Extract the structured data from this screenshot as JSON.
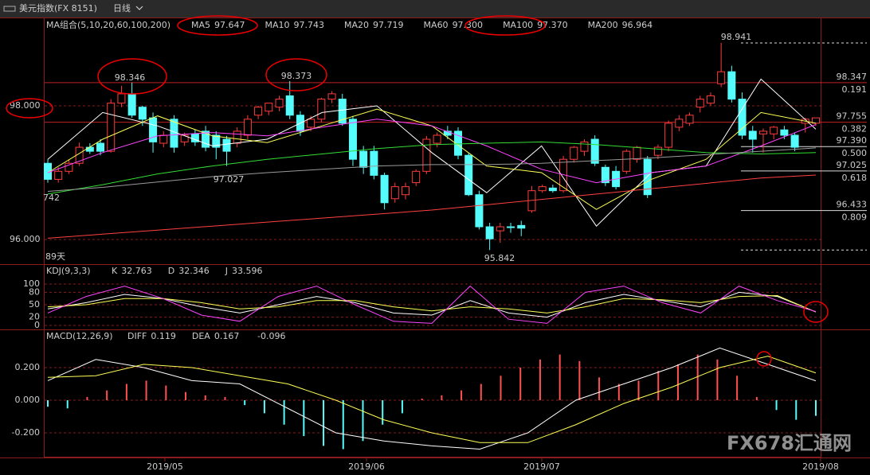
{
  "window": {
    "title": "美元指数(FX 8151)",
    "period": "日线"
  },
  "price_panel": {
    "group_label": "MA组合(5,10,20,60,100,200)",
    "yticks": [
      {
        "value": 98,
        "label": "98.000"
      },
      {
        "value": 96,
        "label": "96.000"
      }
    ],
    "candles": [
      [
        97.14,
        97.2,
        96.85,
        96.9
      ],
      [
        96.9,
        97.08,
        96.85,
        97.02
      ],
      [
        97.02,
        97.2,
        96.98,
        97.14
      ],
      [
        97.14,
        97.45,
        97.1,
        97.38
      ],
      [
        97.38,
        97.44,
        97.28,
        97.32
      ],
      [
        97.44,
        97.5,
        97.26,
        97.32
      ],
      [
        97.32,
        98.1,
        97.3,
        98.04
      ],
      [
        98.04,
        98.3,
        97.98,
        98.18
      ],
      [
        98.18,
        98.35,
        97.82,
        97.86
      ],
      [
        97.98,
        98,
        97.7,
        97.8
      ],
      [
        97.82,
        97.9,
        97.3,
        97.46
      ],
      [
        97.44,
        97.62,
        97.38,
        97.56
      ],
      [
        97.8,
        97.86,
        97.3,
        97.38
      ],
      [
        97.46,
        97.6,
        97.4,
        97.56
      ],
      [
        97.58,
        97.65,
        97.4,
        97.46
      ],
      [
        97.62,
        97.7,
        97.32,
        97.38
      ],
      [
        97.56,
        97.62,
        97.2,
        97.38
      ],
      [
        97.5,
        97.55,
        97.1,
        97.32
      ],
      [
        97.44,
        97.68,
        97.38,
        97.62
      ],
      [
        97.56,
        97.86,
        97.5,
        97.8
      ],
      [
        97.86,
        98,
        97.8,
        97.98
      ],
      [
        97.92,
        98.04,
        97.86,
        98.04
      ],
      [
        97.98,
        98.15,
        97.92,
        98.1
      ],
      [
        98.15,
        98.37,
        97.8,
        97.86
      ],
      [
        97.86,
        97.92,
        97.55,
        97.62
      ],
      [
        97.68,
        97.85,
        97.62,
        97.8
      ],
      [
        97.8,
        98.12,
        97.75,
        98.1
      ],
      [
        98.1,
        98.22,
        98.04,
        98.18
      ],
      [
        98.1,
        98.18,
        97.7,
        97.74
      ],
      [
        97.8,
        97.85,
        97.1,
        97.2
      ],
      [
        97.32,
        97.4,
        96.98,
        97.08
      ],
      [
        97.32,
        97.4,
        96.9,
        96.96
      ],
      [
        96.96,
        97,
        96.45,
        96.55
      ],
      [
        96.61,
        96.85,
        96.55,
        96.79
      ],
      [
        96.67,
        96.85,
        96.6,
        96.79
      ],
      [
        96.85,
        97.05,
        96.8,
        97.02
      ],
      [
        97.02,
        97.55,
        96.98,
        97.5
      ],
      [
        97.44,
        97.6,
        97.38,
        97.56
      ],
      [
        97.62,
        97.7,
        97.5,
        97.56
      ],
      [
        97.62,
        97.68,
        97.2,
        97.26
      ],
      [
        97.26,
        97.3,
        96.65,
        96.67
      ],
      [
        96.67,
        96.73,
        96.15,
        96.19
      ],
      [
        96.19,
        96.25,
        95.842,
        96.01
      ],
      [
        96.13,
        96.25,
        95.95,
        96.19
      ],
      [
        96.19,
        96.25,
        96.1,
        96.18
      ],
      [
        96.21,
        96.28,
        96.05,
        96.17
      ],
      [
        96.43,
        96.8,
        96.4,
        96.73
      ],
      [
        96.73,
        96.82,
        96.7,
        96.79
      ],
      [
        96.77,
        96.82,
        96.7,
        96.73
      ],
      [
        96.73,
        97.25,
        96.7,
        97.2
      ],
      [
        97.2,
        97.4,
        97.15,
        97.38
      ],
      [
        97.32,
        97.5,
        97.25,
        97.46
      ],
      [
        97.5,
        97.56,
        97.1,
        97.14
      ],
      [
        97.08,
        97.12,
        96.8,
        96.85
      ],
      [
        97.02,
        97.1,
        96.75,
        96.79
      ],
      [
        97.02,
        97.35,
        96.98,
        97.32
      ],
      [
        97.2,
        97.4,
        97.15,
        97.38
      ],
      [
        97.2,
        97.25,
        96.62,
        96.67
      ],
      [
        97.26,
        97.42,
        97.2,
        97.38
      ],
      [
        97.38,
        97.78,
        97.32,
        97.74
      ],
      [
        97.68,
        97.86,
        97.62,
        97.8
      ],
      [
        97.74,
        97.9,
        97.7,
        97.86
      ],
      [
        97.98,
        98.15,
        97.9,
        98.1
      ],
      [
        98.04,
        98.2,
        98,
        98.15
      ],
      [
        98.33,
        98.941,
        98.28,
        98.51
      ],
      [
        98.51,
        98.6,
        98.05,
        98.1
      ],
      [
        98.1,
        98.2,
        97.5,
        97.56
      ],
      [
        97.62,
        97.7,
        97.3,
        97.5
      ],
      [
        97.58,
        97.66,
        97.3,
        97.62
      ],
      [
        97.58,
        97.7,
        97.5,
        97.68
      ],
      [
        97.64,
        97.7,
        97.5,
        97.56
      ],
      [
        97.56,
        97.6,
        97.32,
        97.38
      ],
      [
        97.74,
        97.82,
        97.6,
        97.8
      ],
      [
        97.74,
        97.82,
        97.7,
        97.82
      ]
    ],
    "up_color": "#ff3c3c",
    "down_color": "#54fcfc",
    "ma": [
      {
        "name": "MA5",
        "last": "97.647",
        "color": "#ffffff",
        "values": [
          97.2,
          97.9,
          97.7,
          97.4,
          97.5,
          97.9,
          98.0,
          97.3,
          96.7,
          97.4,
          96.2,
          97.0,
          97.1,
          98.4,
          97.65
        ]
      },
      {
        "name": "MA10",
        "last": "97.743",
        "color": "#ffff55",
        "values": [
          97.0,
          97.5,
          97.85,
          97.55,
          97.45,
          97.7,
          97.95,
          97.7,
          97.1,
          97.0,
          96.45,
          96.9,
          97.2,
          97.9,
          97.74
        ]
      },
      {
        "name": "MA20",
        "last": "97.719",
        "color": "#ff44ff",
        "values": [
          97.0,
          97.3,
          97.55,
          97.6,
          97.55,
          97.68,
          97.8,
          97.7,
          97.4,
          97.05,
          96.85,
          97.0,
          97.1,
          97.4,
          97.72
        ]
      },
      {
        "name": "MA60",
        "last": "97.300",
        "color": "#33dd33",
        "values": [
          96.68,
          96.82,
          96.98,
          97.1,
          97.2,
          97.28,
          97.36,
          97.42,
          97.44,
          97.46,
          97.42,
          97.36,
          97.3,
          97.28,
          97.3
        ]
      },
      {
        "name": "MA100",
        "last": "97.370",
        "color": "#9a9a9a",
        "values": [
          96.72,
          96.78,
          96.86,
          96.94,
          97.0,
          97.05,
          97.1,
          97.12,
          97.12,
          97.14,
          97.18,
          97.22,
          97.27,
          97.32,
          97.37
        ]
      },
      {
        "name": "MA200",
        "last": "96.964",
        "color": "#ff4040",
        "values": [
          96.02,
          96.08,
          96.14,
          96.2,
          96.26,
          96.32,
          96.38,
          96.44,
          96.52,
          96.6,
          96.68,
          96.76,
          96.84,
          96.92,
          96.964
        ]
      }
    ],
    "levels": [
      {
        "value": 98.347,
        "label": "98.347",
        "ratio": "0.191"
      },
      {
        "value": 97.755,
        "label": "97.755",
        "ratio": "0.382"
      },
      {
        "value": 97.39,
        "label": "97.390",
        "ratio": "0.500"
      },
      {
        "value": 97.025,
        "label": "97.025",
        "ratio": "0.618"
      },
      {
        "value": 96.433,
        "label": "96.433",
        "ratio": "0.809"
      }
    ],
    "range_lines": [
      98.941,
      95.842
    ],
    "annotations": [
      98.346,
      98.373,
      97.027,
      95.842,
      98.941
    ],
    "left_notes": [
      "742",
      "89天"
    ]
  },
  "kdj_panel": {
    "label": "KDJ(9,3,3)",
    "yticks": [
      100,
      80,
      50,
      20,
      0
    ],
    "series": [
      {
        "name": "K",
        "last": "32.763",
        "color": "#ffffff",
        "values": [
          40,
          55,
          75,
          65,
          45,
          30,
          50,
          70,
          55,
          30,
          25,
          60,
          30,
          20,
          55,
          75,
          60,
          45,
          80,
          70,
          32.763
        ]
      },
      {
        "name": "D",
        "last": "32.346",
        "color": "#ffff55",
        "values": [
          45,
          50,
          65,
          65,
          55,
          40,
          45,
          60,
          60,
          45,
          35,
          45,
          40,
          30,
          45,
          65,
          62,
          55,
          70,
          72,
          32.346
        ]
      },
      {
        "name": "J",
        "last": "33.596",
        "color": "#ff44ff",
        "values": [
          30,
          70,
          95,
          65,
          25,
          10,
          70,
          95,
          50,
          10,
          5,
          95,
          15,
          5,
          80,
          95,
          55,
          30,
          95,
          60,
          33.596
        ]
      }
    ]
  },
  "macd_panel": {
    "label": "MACD(12,26,9)",
    "macd_last": "-0.096",
    "yticks": [
      {
        "value": 0.2,
        "label": "0.200"
      },
      {
        "value": 0,
        "label": "0.000"
      },
      {
        "value": -0.2,
        "label": "-0.200"
      }
    ],
    "series": [
      {
        "name": "DIFF",
        "last": "0.119",
        "color": "#ffffff",
        "values": [
          0.12,
          0.25,
          0.2,
          0.12,
          0.1,
          -0.05,
          -0.2,
          -0.25,
          -0.28,
          -0.3,
          -0.2,
          0,
          0.1,
          0.2,
          0.32,
          0.22,
          0.119
        ]
      },
      {
        "name": "DEA",
        "last": "0.167",
        "color": "#ffff55",
        "values": [
          0.14,
          0.15,
          0.22,
          0.2,
          0.15,
          0.1,
          0,
          -0.12,
          -0.2,
          -0.26,
          -0.26,
          -0.15,
          -0.02,
          0.08,
          0.2,
          0.27,
          0.167
        ]
      }
    ],
    "histogram": [
      -0.04,
      -0.05,
      0.02,
      0.06,
      0.1,
      0.12,
      0.09,
      0.05,
      0.03,
      0.02,
      -0.03,
      -0.08,
      -0.15,
      -0.22,
      -0.28,
      -0.3,
      -0.25,
      -0.15,
      -0.08,
      0.01,
      0.03,
      0.06,
      0.1,
      0.15,
      0.2,
      0.25,
      0.28,
      0.24,
      0.14,
      0.1,
      0.12,
      0.18,
      0.22,
      0.28,
      0.25,
      0.15,
      0.02,
      -0.06,
      -0.12,
      -0.096
    ]
  },
  "x_axis": {
    "dates": [
      "2019/05",
      "2019/06",
      "2019/07",
      "2019/08"
    ]
  },
  "watermark": "FX678汇通网"
}
